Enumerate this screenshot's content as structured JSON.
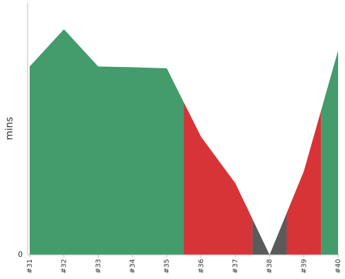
{
  "chart_data": {
    "type": "area",
    "title": "",
    "xlabel": "",
    "ylabel": "mins",
    "categories": [
      "#31",
      "#32",
      "#33",
      "#34",
      "#35",
      "#36",
      "#37",
      "#38",
      "#39",
      "#40"
    ],
    "values": [
      71,
      85,
      71,
      70.7,
      70.3,
      44.5,
      27,
      0,
      31.5,
      77
    ],
    "result": [
      "success",
      "success",
      "success",
      "success",
      "success",
      "failure",
      "failure",
      "aborted",
      "failure",
      "success"
    ],
    "y_tick_labels": [
      "0"
    ],
    "ylim": [
      0,
      95
    ],
    "grid": false,
    "legend": "none"
  },
  "colors": {
    "success": "#449b6b",
    "failure": "#d63437",
    "aborted": "#5a5a5a",
    "axis": "#bdbdbd",
    "text": "#333333"
  }
}
